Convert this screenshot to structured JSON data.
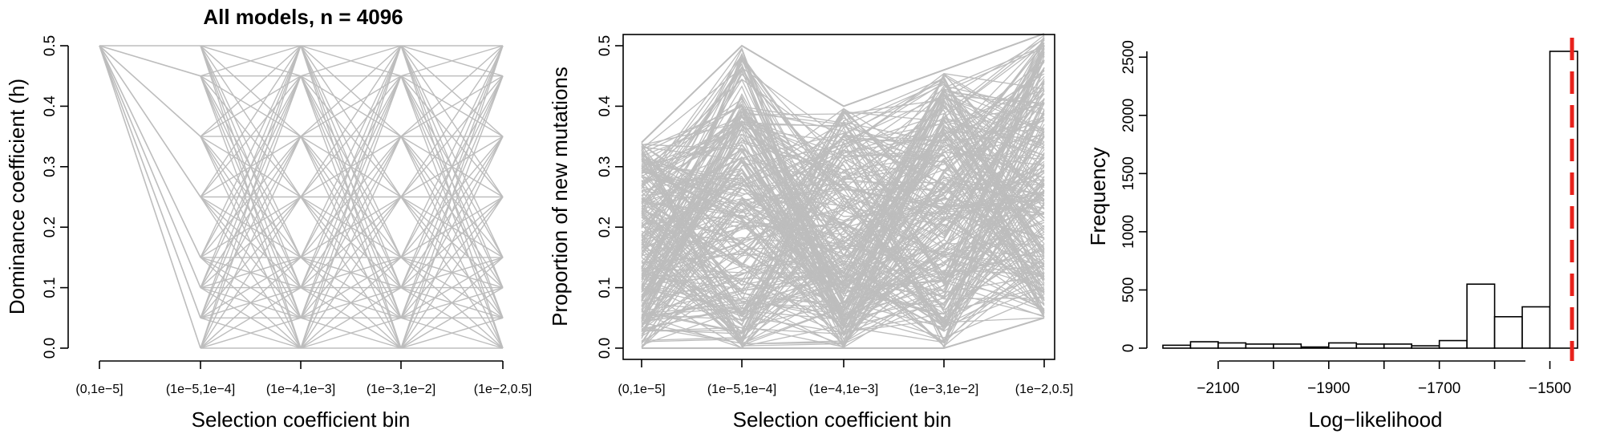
{
  "chart_data": [
    {
      "type": "line",
      "title": "All models, n = 4096",
      "xlabel": "Selection coefficient bin",
      "ylabel": "Dominance coefficient (h)",
      "categories": [
        "(0,1e−5]",
        "(1e−5,1e−4]",
        "(1e−4,1e−3]",
        "(1e−3,1e−2]",
        "(1e−2,0.5]"
      ],
      "ylim": [
        0,
        0.5
      ],
      "yticks": [
        "0.0",
        "0.1",
        "0.2",
        "0.3",
        "0.4",
        "0.5"
      ],
      "h_levels": [
        0,
        0.05,
        0.1,
        0.15,
        0.25,
        0.35,
        0.45,
        0.5
      ],
      "first_bin_value": 0.5,
      "line_color": "#bdbdbd",
      "grid": false
    },
    {
      "type": "line",
      "title": "",
      "xlabel": "Selection coefficient bin",
      "ylabel": "Proportion of new mutations",
      "categories": [
        "(0,1e−5]",
        "(1e−5,1e−4]",
        "(1e−4,1e−3]",
        "(1e−3,1e−2]",
        "(1e−2,0.5]"
      ],
      "ylim": [
        0,
        0.5
      ],
      "yticks": [
        "0.0",
        "0.1",
        "0.2",
        "0.3",
        "0.4",
        "0.5"
      ],
      "envelope_upper": [
        0.34,
        0.5,
        0.4,
        0.46,
        0.52
      ],
      "envelope_lower": [
        0.0,
        0.0,
        0.0,
        0.0,
        0.05
      ],
      "line_color": "#bdbdbd",
      "grid": false
    },
    {
      "type": "bar",
      "title": "",
      "xlabel": "Log−likelihood",
      "ylabel": "Frequency",
      "bin_edges": [
        -2200,
        -2150,
        -2100,
        -2050,
        -2000,
        -1950,
        -1900,
        -1850,
        -1800,
        -1750,
        -1700,
        -1650,
        -1600,
        -1550,
        -1500,
        -1450
      ],
      "values": [
        25,
        55,
        45,
        35,
        35,
        10,
        45,
        35,
        35,
        20,
        65,
        550,
        270,
        355,
        2550
      ],
      "xticks": [
        "−2100",
        "−1900",
        "−1700",
        "−1500"
      ],
      "yticks": [
        "0",
        "500",
        "1000",
        "1500",
        "2000",
        "2500"
      ],
      "ylim": [
        0,
        2550
      ],
      "reference_line_x": -1460,
      "reference_line_color": "#e8221c",
      "grid": false
    }
  ]
}
